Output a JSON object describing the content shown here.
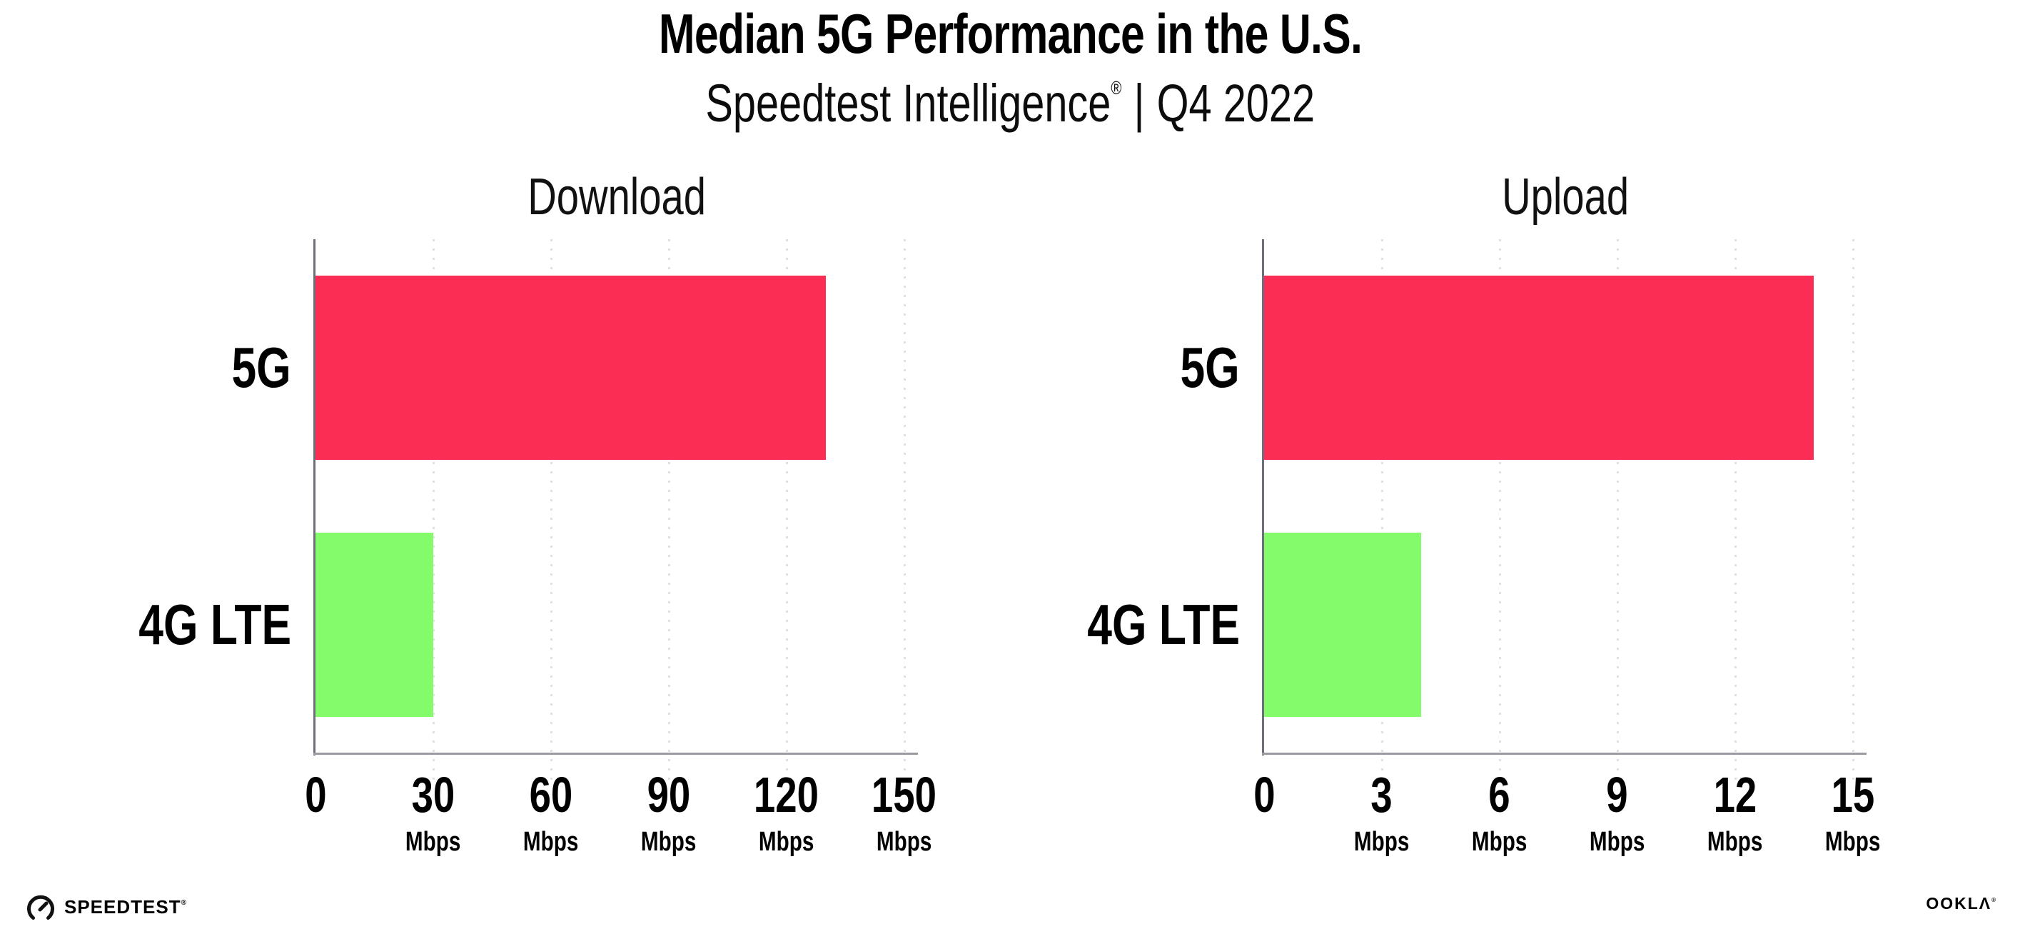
{
  "header": {
    "title": "Median 5G Performance in the U.S.",
    "subtitle_product": "Speedtest Intelligence",
    "subtitle_trademark": "®",
    "subtitle_divider": "|",
    "subtitle_period": "Q4 2022"
  },
  "chart_data": [
    {
      "type": "bar",
      "orientation": "horizontal",
      "title": "Download",
      "categories": [
        "5G",
        "4G LTE"
      ],
      "values": [
        130,
        30
      ],
      "unit": "Mbps",
      "xticks": [
        0,
        30,
        60,
        90,
        120,
        150
      ],
      "xlabel_unit_per_tick": "Mbps",
      "axis_max": 153.5,
      "grid": "dotted-vertical",
      "bar_colors": [
        "#FC2D55",
        "#83FB6A"
      ]
    },
    {
      "type": "bar",
      "orientation": "horizontal",
      "title": "Upload",
      "categories": [
        "5G",
        "4G LTE"
      ],
      "values": [
        14,
        4
      ],
      "unit": "Mbps",
      "xticks": [
        0,
        3,
        6,
        9,
        12,
        15
      ],
      "xlabel_unit_per_tick": "Mbps",
      "axis_max": 15.35,
      "grid": "dotted-vertical",
      "bar_colors": [
        "#FC2D55",
        "#83FB6A"
      ]
    }
  ],
  "colors": {
    "bar_5g": "#FC2D55",
    "bar_4g_lte": "#83FB6A",
    "axis_line": "#9a9aa3",
    "gridline_dots": "#dfdfec",
    "text": "#000000"
  },
  "footer": {
    "speedtest_label": "SPEEDTEST",
    "speedtest_trademark": "®",
    "ookla_label": "OOKLΛ",
    "ookla_trademark": "®"
  }
}
